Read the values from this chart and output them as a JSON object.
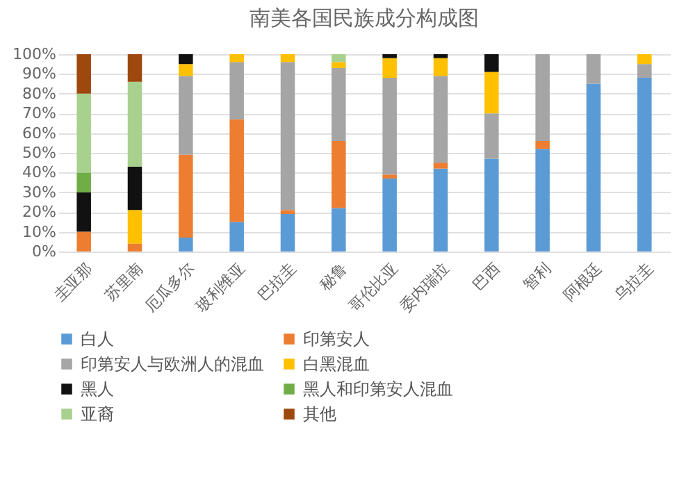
{
  "chart_data": {
    "type": "bar",
    "title": "南美各国民族成分构成图",
    "stacked": true,
    "grid": "y",
    "legend": "bottom",
    "categories": [
      "圭亚那",
      "苏里南",
      "厄瓜多尔",
      "玻利维亚",
      "巴拉圭",
      "秘鲁",
      "哥伦比亚",
      "委内瑞拉",
      "巴西",
      "智利",
      "阿根廷",
      "乌拉圭"
    ],
    "ylim": [
      0,
      100
    ],
    "yticks": [
      {
        "value": 0,
        "label": "0%"
      },
      {
        "value": 10,
        "label": "10%"
      },
      {
        "value": 20,
        "label": "20%"
      },
      {
        "value": 30,
        "label": "30%"
      },
      {
        "value": 40,
        "label": "40%"
      },
      {
        "value": 50,
        "label": "50%"
      },
      {
        "value": 60,
        "label": "60%"
      },
      {
        "value": 70,
        "label": "70%"
      },
      {
        "value": 80,
        "label": "80%"
      },
      {
        "value": 90,
        "label": "90%"
      },
      {
        "value": 100,
        "label": "100%"
      }
    ],
    "series": [
      {
        "name": "白人",
        "color": "#5b9bd5",
        "values": [
          0,
          0,
          7,
          15,
          19,
          22,
          37,
          42,
          47,
          52,
          85,
          88
        ]
      },
      {
        "name": "印第安人",
        "color": "#ed7d31",
        "values": [
          10,
          4,
          42,
          52,
          2,
          34,
          2,
          3,
          0,
          4,
          0,
          0
        ]
      },
      {
        "name": "印第安人与欧洲人的混血",
        "color": "#a5a5a5",
        "values": [
          0,
          0,
          40,
          29,
          75,
          37,
          49,
          44,
          23,
          44,
          15,
          7
        ]
      },
      {
        "name": "白黑混血",
        "color": "#ffc000",
        "values": [
          0,
          17,
          6,
          4,
          4,
          3,
          10,
          9,
          21,
          0,
          0,
          5
        ]
      },
      {
        "name": "黑人",
        "color": "#111111",
        "values": [
          20,
          22,
          5,
          0,
          0,
          0,
          2,
          2,
          9,
          0,
          0,
          0
        ]
      },
      {
        "name": "黑人和印第安人混血",
        "color": "#70ad47",
        "values": [
          10,
          0,
          0,
          0,
          0,
          0,
          0,
          0,
          0,
          0,
          0,
          0
        ]
      },
      {
        "name": "亚裔",
        "color": "#a9d18e",
        "values": [
          40,
          43,
          0,
          0,
          0,
          4,
          0,
          0,
          0,
          0,
          0,
          0
        ]
      },
      {
        "name": "其他",
        "color": "#9e480e",
        "values": [
          20,
          14,
          0,
          0,
          0,
          0,
          0,
          0,
          0,
          0,
          0,
          0
        ]
      }
    ]
  }
}
